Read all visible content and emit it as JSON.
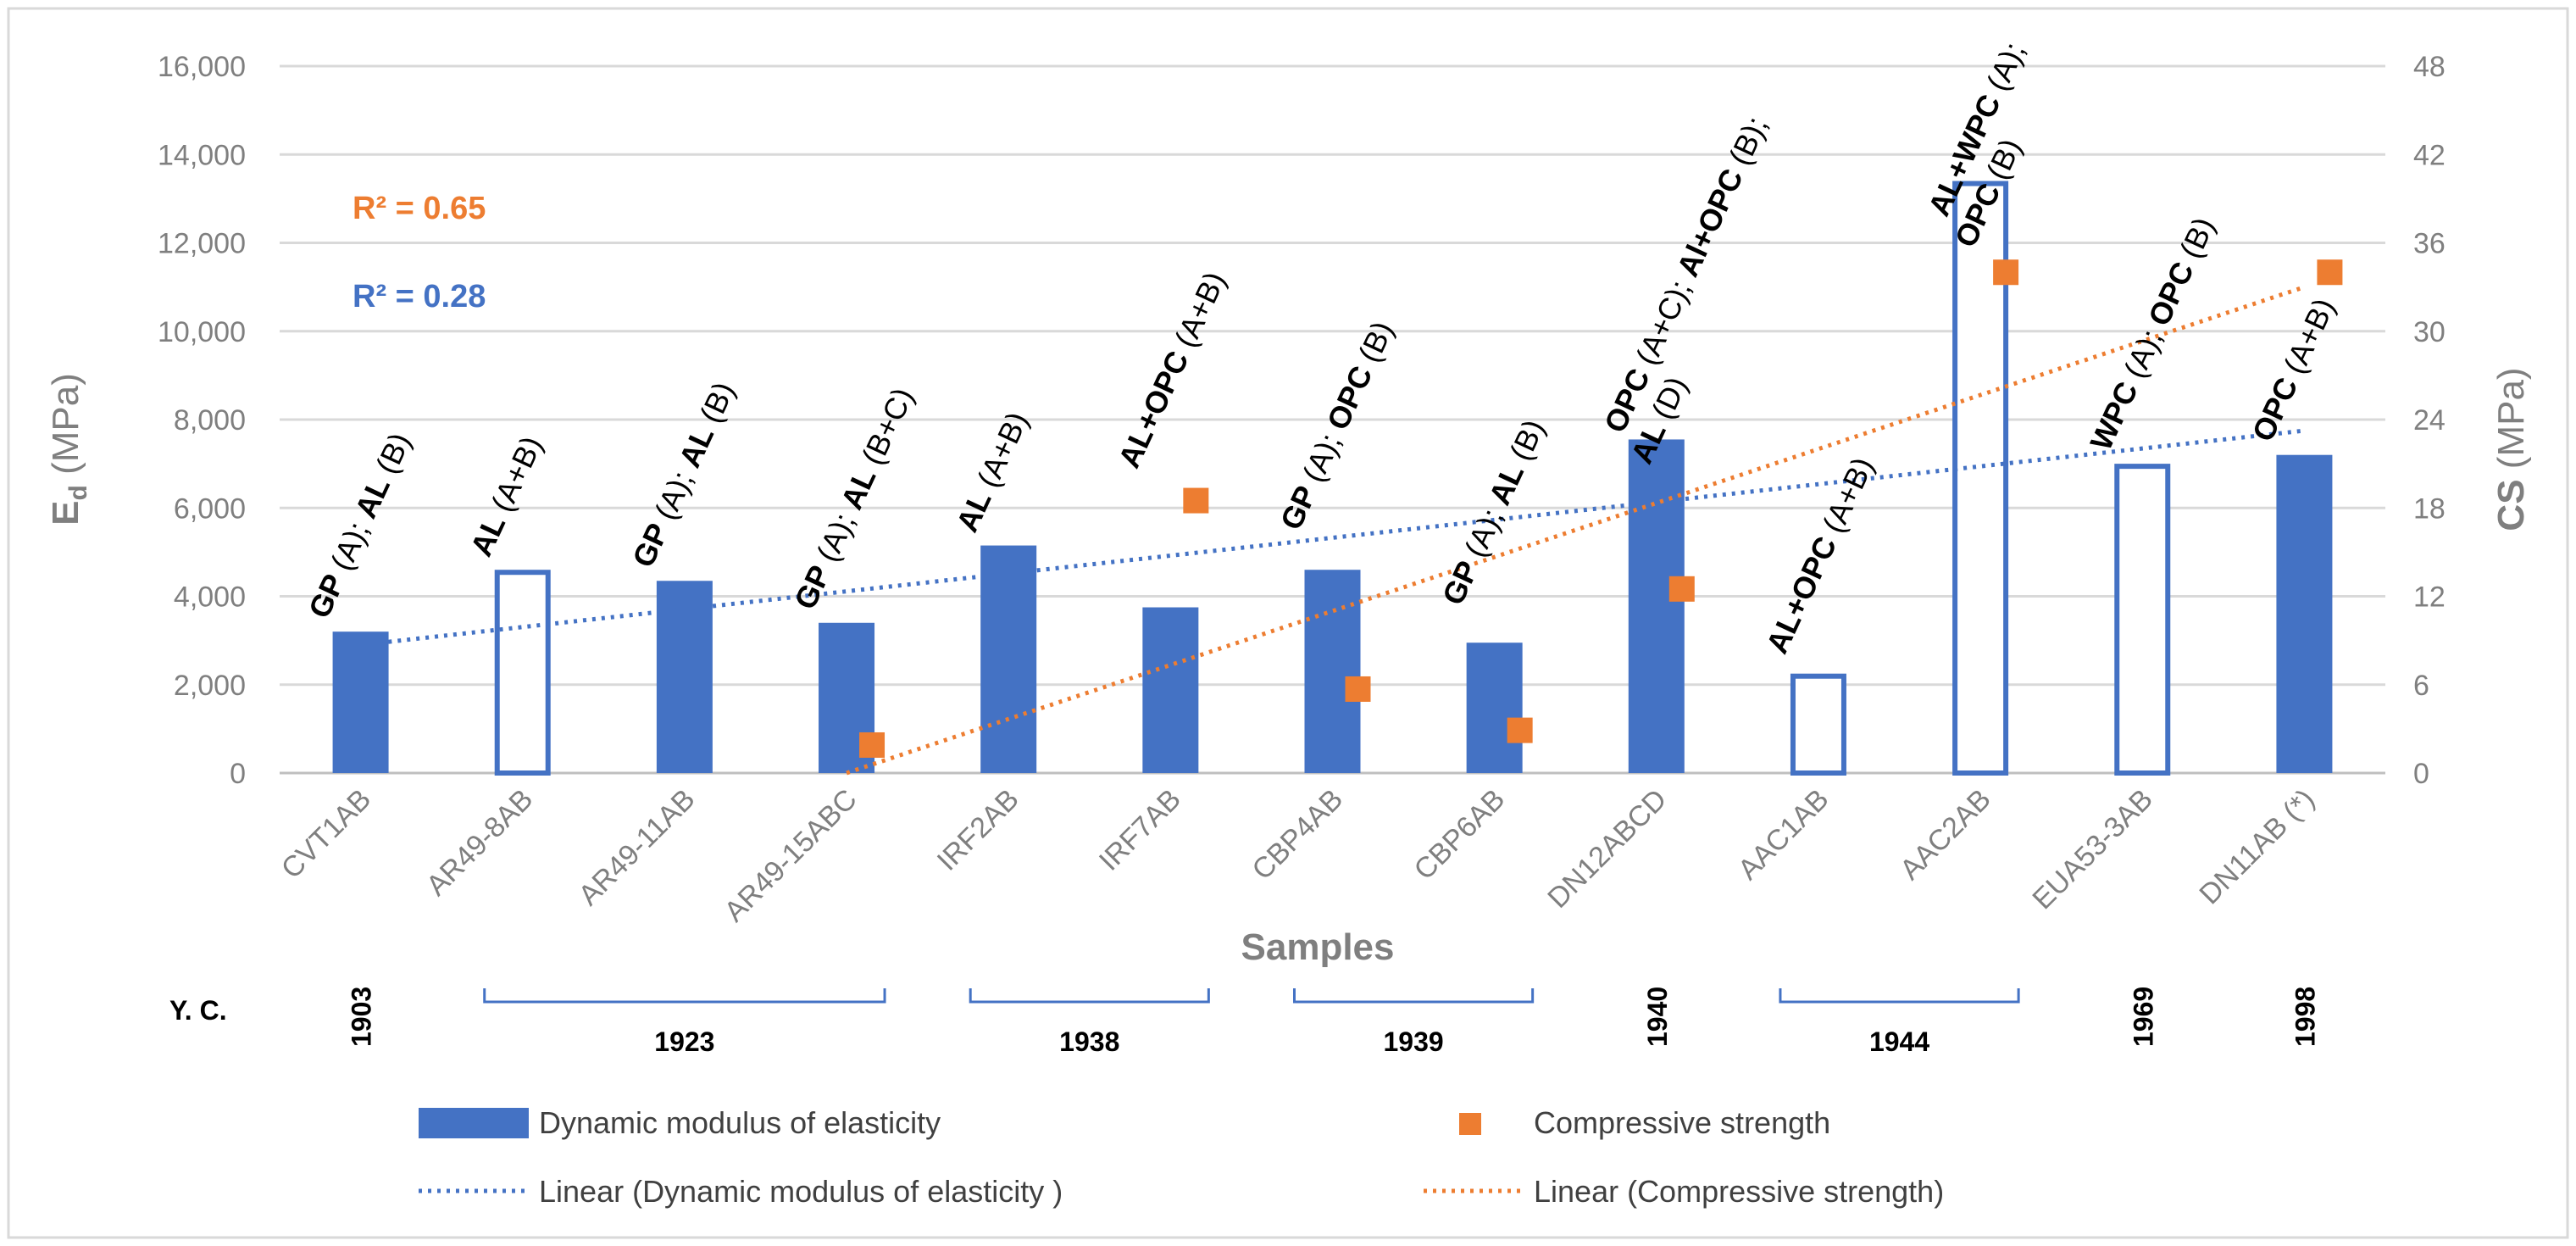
{
  "chart_data": {
    "type": "bar+scatter",
    "title": "",
    "categories": [
      "CVT1AB",
      "AR49-8AB",
      "AR49-11AB",
      "AR49-15ABC",
      "IRF2AB",
      "IRF7AB",
      "CBP4AB",
      "CBP6AB",
      "DN12ABCD",
      "AAC1AB",
      "AAC2AB",
      "EUA53-3AB",
      "DN11AB (*)"
    ],
    "xlabel": "Samples",
    "ylabel_left": {
      "main": "E",
      "sub": "d",
      "unit": " (MPa)"
    },
    "ylabel_right": {
      "main": "CS",
      "unit": " (MPa)"
    },
    "ylim_left": [
      0,
      16000
    ],
    "ylim_right": [
      0,
      48
    ],
    "left_ticks": [
      "0",
      "2,000",
      "4,000",
      "6,000",
      "8,000",
      "10,000",
      "12,000",
      "14,000",
      "16,000"
    ],
    "right_ticks": [
      "0",
      "6",
      "12",
      "18",
      "24",
      "30",
      "36",
      "42",
      "48"
    ],
    "grid": true,
    "series": [
      {
        "name": "Dynamic modulus of elasticity",
        "kind": "bar",
        "axis": "left",
        "values": [
          3200,
          4600,
          4350,
          3400,
          5150,
          3750,
          4600,
          2950,
          7550,
          2250,
          13400,
          7000,
          7200
        ],
        "hollow": [
          false,
          true,
          false,
          false,
          false,
          false,
          false,
          false,
          false,
          true,
          true,
          true,
          false
        ],
        "color": "#4472c4"
      },
      {
        "name": "Compressive strength",
        "kind": "scatter",
        "axis": "right",
        "x": [
          "AR49-15ABC",
          "IRF7AB",
          "CBP4AB",
          "CBP6AB",
          "DN12ABCD",
          "AAC2AB",
          "DN11AB (*)"
        ],
        "values": [
          1.9,
          18.5,
          5.7,
          2.9,
          12.5,
          34,
          34
        ],
        "color": "#ed7d31"
      },
      {
        "name": "Linear (Dynamic modulus of elasticity )",
        "kind": "trendline",
        "axis": "left",
        "from": {
          "category": "CVT1AB",
          "value": 2900
        },
        "to": {
          "category": "DN11AB (*)",
          "value": 7750
        },
        "color": "#4472c4"
      },
      {
        "name": "Linear (Compressive strength)",
        "kind": "trendline",
        "axis": "right",
        "from": {
          "category": "AR49-15ABC",
          "value": 0
        },
        "to": {
          "category": "DN11AB (*)",
          "value": 33
        },
        "color": "#ed7d31"
      }
    ],
    "r2": [
      {
        "text": "R² = 0.65",
        "color": "#ed7d31"
      },
      {
        "text": "R² = 0.28",
        "color": "#4472c4"
      }
    ],
    "annotations": [
      {
        "category": "CVT1AB",
        "anchor_value": 3300,
        "lines": [
          [
            {
              "t": "GP",
              "b": true
            },
            {
              "t": " (A); ",
              "b": false
            },
            {
              "t": "AL",
              "b": true
            },
            {
              "t": " (B)",
              "b": false
            }
          ]
        ]
      },
      {
        "category": "AR49-8AB",
        "anchor_value": 4700,
        "lines": [
          [
            {
              "t": "AL",
              "b": true
            },
            {
              "t": "  (A+B)",
              "b": false
            }
          ]
        ]
      },
      {
        "category": "AR49-11AB",
        "anchor_value": 4450,
        "lines": [
          [
            {
              "t": "GP",
              "b": true
            },
            {
              "t": " (A); ",
              "b": false
            },
            {
              "t": "AL",
              "b": true
            },
            {
              "t": " (B)",
              "b": false
            }
          ]
        ]
      },
      {
        "category": "AR49-15ABC",
        "anchor_value": 3500,
        "lines": [
          [
            {
              "t": "GP",
              "b": true
            },
            {
              "t": " (A); ",
              "b": false
            },
            {
              "t": "AL",
              "b": true
            },
            {
              "t": " (B+C)",
              "b": false
            }
          ]
        ]
      },
      {
        "category": "IRF2AB",
        "anchor_value": 5250,
        "lines": [
          [
            {
              "t": "AL",
              "b": true
            },
            {
              "t": " (A+B)",
              "b": false
            }
          ]
        ]
      },
      {
        "category": "IRF7AB",
        "anchor_value": 6700,
        "lines": [
          [
            {
              "t": "AL+OPC",
              "b": true
            },
            {
              "t": " (A+B)",
              "b": false
            }
          ]
        ]
      },
      {
        "category": "CBP4AB",
        "anchor_value": 5300,
        "lines": [
          [
            {
              "t": "GP",
              "b": true
            },
            {
              "t": " (A); ",
              "b": false
            },
            {
              "t": "OPC",
              "b": true
            },
            {
              "t": " (B)",
              "b": false
            }
          ]
        ]
      },
      {
        "category": "CBP6AB",
        "anchor_value": 3600,
        "lines": [
          [
            {
              "t": "GP",
              "b": true
            },
            {
              "t": " (A); ",
              "b": false
            },
            {
              "t": "AL",
              "b": true
            },
            {
              "t": " (B)",
              "b": false
            }
          ]
        ]
      },
      {
        "category": "DN12ABCD",
        "anchor_value": 7500,
        "lines": [
          [
            {
              "t": "OPC",
              "b": true
            },
            {
              "t": " (A+C); ",
              "b": false
            },
            {
              "t": "Al+OPC",
              "b": true
            },
            {
              "t": " (B);",
              "b": false
            }
          ],
          [
            {
              "t": "AL",
              "b": true
            },
            {
              "t": " (D)",
              "b": false
            }
          ]
        ]
      },
      {
        "category": "AAC1AB",
        "anchor_value": 2500,
        "lines": [
          [
            {
              "t": "AL+OPC",
              "b": true
            },
            {
              "t": " (A+B)",
              "b": false
            }
          ]
        ]
      },
      {
        "category": "AAC2AB",
        "anchor_value": 12400,
        "lines": [
          [
            {
              "t": "AL+WPC",
              "b": true
            },
            {
              "t": " (A);",
              "b": false
            }
          ],
          [
            {
              "t": "OPC",
              "b": true
            },
            {
              "t": " (B)",
              "b": false
            }
          ]
        ]
      },
      {
        "category": "EUA53-3AB",
        "anchor_value": 7100,
        "lines": [
          [
            {
              "t": "WPC",
              "b": true
            },
            {
              "t": " (A); ",
              "b": false
            },
            {
              "t": "OPC",
              "b": true
            },
            {
              "t": " (B)",
              "b": false
            }
          ]
        ]
      },
      {
        "category": "DN11AB (*)",
        "anchor_value": 7300,
        "lines": [
          [
            {
              "t": "OPC",
              "b": true
            },
            {
              "t": " (A+B)",
              "b": false
            }
          ]
        ]
      }
    ],
    "year_label": "Y. C.",
    "single_years": [
      {
        "category": "CVT1AB",
        "year": "1903"
      },
      {
        "category": "DN12ABCD",
        "year": "1940"
      },
      {
        "category": "EUA53-3AB",
        "year": "1969"
      },
      {
        "category": "DN11AB (*)",
        "year": "1998"
      }
    ],
    "year_groups": [
      {
        "from": "AR49-8AB",
        "to": "AR49-15ABC",
        "year": "1923"
      },
      {
        "from": "IRF2AB",
        "to": "IRF7AB",
        "year": "1938"
      },
      {
        "from": "CBP4AB",
        "to": "CBP6AB",
        "year": "1939"
      },
      {
        "from": "AAC1AB",
        "to": "AAC2AB",
        "year": "1944"
      }
    ],
    "legend": [
      {
        "label": "Dynamic modulus of elasticity",
        "symbol": "bar",
        "color": "#4472c4"
      },
      {
        "label": "Compressive strength",
        "symbol": "square",
        "color": "#ed7d31"
      },
      {
        "label": "Linear (Dynamic modulus of elasticity )",
        "symbol": "dotted",
        "color": "#4472c4"
      },
      {
        "label": "Linear (Compressive strength)",
        "symbol": "dotted",
        "color": "#ed7d31"
      }
    ]
  }
}
